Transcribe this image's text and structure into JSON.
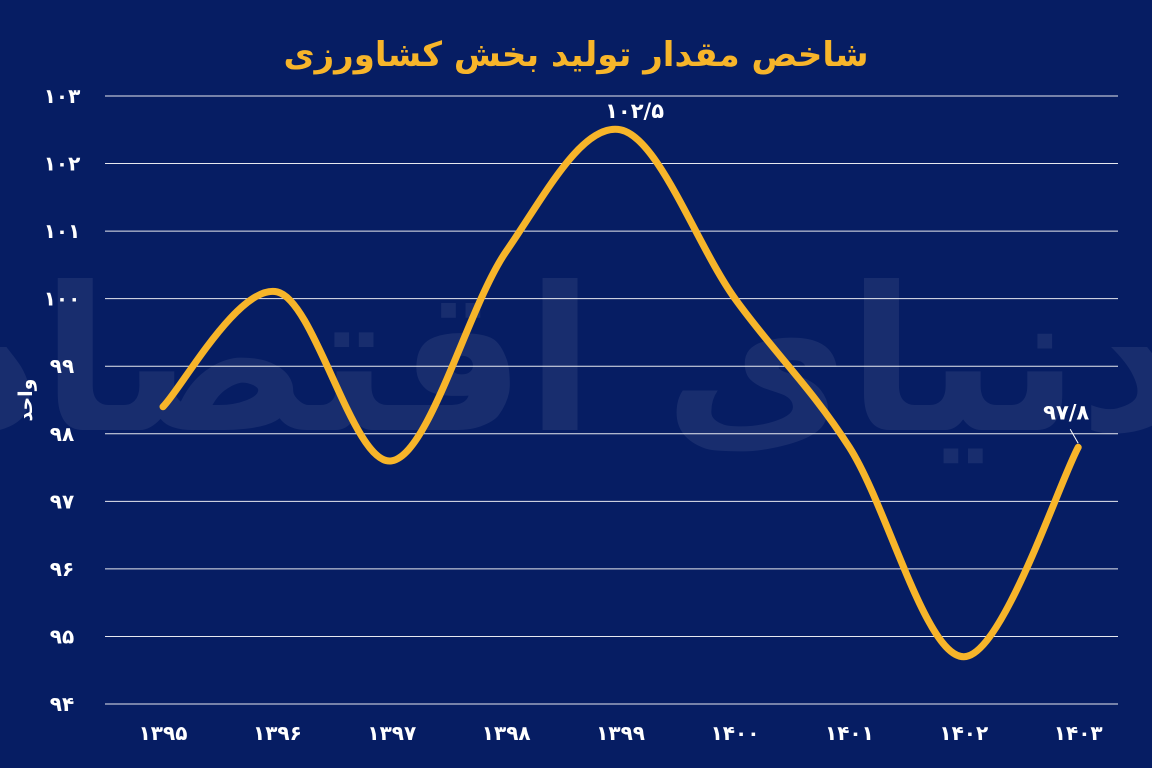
{
  "chart_data": {
    "type": "line",
    "title": "شاخص مقدار تولید بخش کشاورزی",
    "ylabel": "واحد",
    "xlabel": "",
    "watermark": "دنیای اقتصاد",
    "x": [
      "۱۳۹۵",
      "۱۳۹۶",
      "۱۳۹۷",
      "۱۳۹۸",
      "۱۳۹۹",
      "۱۴۰۰",
      "۱۴۰۱",
      "۱۴۰۲",
      "۱۴۰۳"
    ],
    "values": [
      98.4,
      100.1,
      97.6,
      100.7,
      102.5,
      100.0,
      97.8,
      94.7,
      97.8
    ],
    "ylim": [
      94,
      103
    ],
    "yticks": [
      94,
      95,
      96,
      97,
      98,
      99,
      100,
      101,
      102,
      103
    ],
    "yticklabels": [
      "۹۴",
      "۹۵",
      "۹۶",
      "۹۷",
      "۹۸",
      "۹۹",
      "۱۰۰",
      "۱۰۱",
      "۱۰۲",
      "۱۰۳"
    ],
    "annotations": [
      {
        "index": 4,
        "text": "۱۰۲/۵"
      },
      {
        "index": 8,
        "text": "۹۷/۸"
      }
    ],
    "grid": true,
    "colors": {
      "background": "#061d63",
      "line": "#f7b52a",
      "title": "#f7b52a",
      "text": "#ffffff"
    }
  }
}
